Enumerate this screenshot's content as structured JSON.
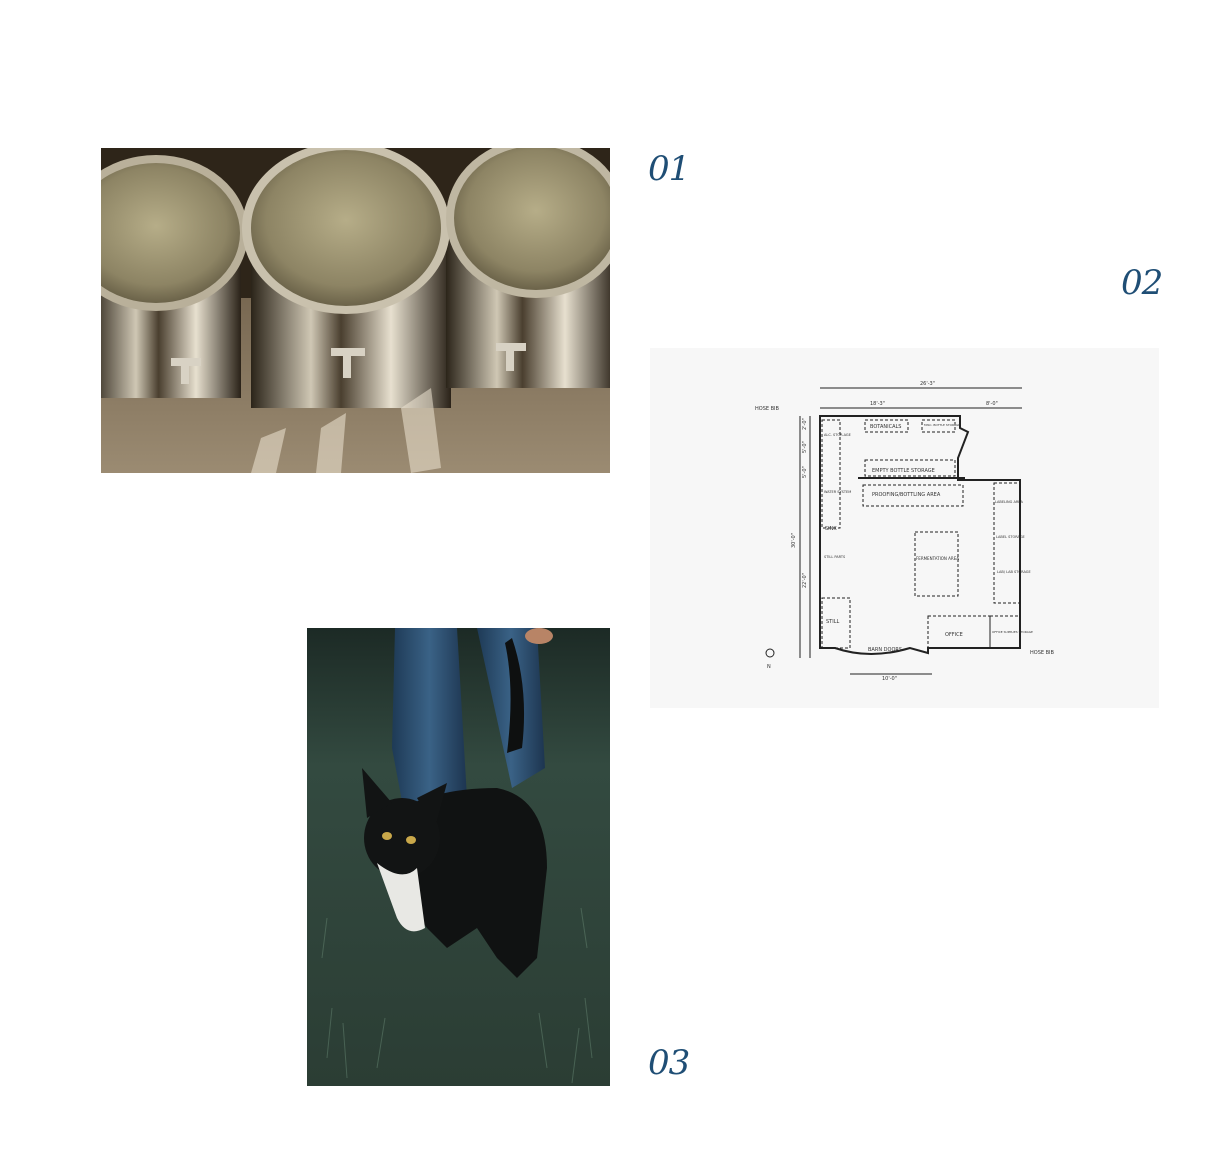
{
  "accent_color": "#1f4e75",
  "steps": [
    {
      "number": "01"
    },
    {
      "number": "02"
    },
    {
      "number": "03"
    }
  ],
  "images": {
    "tanks": {
      "name": "fermentation-tanks-photo"
    },
    "plan": {
      "name": "floor-plan-drawing",
      "labels": {
        "width_total": "26'-3\"",
        "width_left": "18'-3\"",
        "width_right": "8'-0\"",
        "hose_bib": "HOSE BIB",
        "botanicals": "BOTANICALS",
        "misc_storage": "MISC. BOTTLE STORAGE",
        "alc_storage": "ALC. STOR-AGE",
        "empty_bottle_storage": "EMPTY BOTTLE STORAGE",
        "proofing_bottling": "PROOFING/BOTTLING AREA",
        "water_system": "WATER SYSTEM",
        "sink": "SINK",
        "still_parts": "STILL PARTS",
        "still": "STILL",
        "fermentation_area": "FERMENTATION AREA",
        "labeling_area": "LABELING AREA",
        "label_storage": "LABEL STORAGE",
        "lab_storage": "LAB/ LAB STORAGE",
        "office": "OFFICE",
        "office_supplies": "OFFICE SUPPLIES STORAGE",
        "barn_doors": "BARN DOORS",
        "width_bottom": "10'-0\"",
        "height_total": "30'-0\"",
        "height_main": "22'-0\"",
        "dim_small1": "2'-0\"",
        "dim_small2": "5'-0\"",
        "dim_small3": "5'-0\"",
        "north": "N"
      }
    },
    "cat": {
      "name": "black-cat-photo"
    }
  }
}
